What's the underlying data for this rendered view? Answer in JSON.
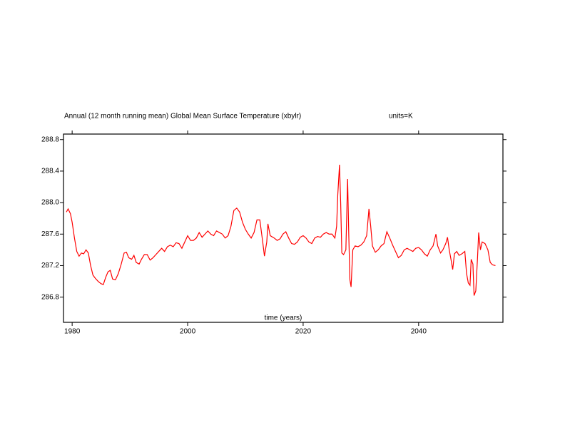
{
  "chart_data": {
    "type": "line",
    "title": "Annual (12 month running mean) Global Mean Surface Temperature (xbylr)",
    "subtitle": "units=K",
    "xlabel": "time (years)",
    "xlim": [
      1978.5,
      2054.6
    ],
    "ylim": [
      286.48,
      288.87
    ],
    "xticks": [
      1980,
      2000,
      2020,
      2040
    ],
    "yticks": [
      286.8,
      287.2,
      287.6,
      {
        "value": 288.0,
        "label": "288.0"
      },
      288.4,
      288.8
    ],
    "x": [
      1979.0,
      1979.3,
      1979.7,
      1980.0,
      1980.4,
      1980.8,
      1981.2,
      1981.6,
      1982.0,
      1982.4,
      1982.8,
      1983.2,
      1983.6,
      1984.0,
      1984.5,
      1985.0,
      1985.4,
      1985.8,
      1986.2,
      1986.6,
      1987.0,
      1987.5,
      1988.0,
      1988.5,
      1989.0,
      1989.4,
      1989.8,
      1990.3,
      1990.7,
      1991.1,
      1991.6,
      1992.0,
      1992.5,
      1993.0,
      1993.5,
      1994.0,
      1994.5,
      1995.0,
      1995.5,
      1996.0,
      1996.5,
      1997.0,
      1997.5,
      1998.0,
      1998.5,
      1999.0,
      1999.5,
      2000.0,
      2000.5,
      2001.0,
      2001.5,
      2002.0,
      2002.5,
      2003.0,
      2003.5,
      2004.0,
      2004.5,
      2005.0,
      2005.5,
      2006.0,
      2006.5,
      2007.0,
      2007.5,
      2008.0,
      2008.5,
      2009.0,
      2009.5,
      2010.0,
      2010.5,
      2011.0,
      2011.5,
      2012.0,
      2012.5,
      2013.0,
      2013.3,
      2013.7,
      2013.9,
      2014.3,
      2015.0,
      2015.5,
      2016.0,
      2016.5,
      2017.0,
      2017.5,
      2018.0,
      2018.5,
      2019.0,
      2019.5,
      2020.0,
      2020.5,
      2021.0,
      2021.5,
      2022.0,
      2022.5,
      2023.0,
      2023.5,
      2024.0,
      2024.5,
      2025.0,
      2025.5,
      2025.8,
      2026.0,
      2026.3,
      2026.5,
      2026.7,
      2027.0,
      2027.4,
      2027.7,
      2027.9,
      2028.1,
      2028.3,
      2028.6,
      2029.0,
      2029.5,
      2030.0,
      2030.5,
      2031.0,
      2031.4,
      2031.7,
      2032.0,
      2032.5,
      2033.0,
      2033.5,
      2034.0,
      2034.5,
      2035.0,
      2035.5,
      2036.0,
      2036.5,
      2037.0,
      2037.5,
      2038.0,
      2038.5,
      2039.0,
      2039.5,
      2040.0,
      2040.5,
      2041.0,
      2041.5,
      2042.0,
      2042.5,
      2043.0,
      2043.3,
      2043.8,
      2044.2,
      2044.7,
      2045.0,
      2045.3,
      2045.6,
      2045.9,
      2046.2,
      2046.6,
      2047.0,
      2047.5,
      2048.0,
      2048.3,
      2048.6,
      2048.9,
      2049.1,
      2049.4,
      2049.6,
      2049.9,
      2050.2,
      2050.4,
      2050.7,
      2051.0,
      2051.5,
      2052.0,
      2052.4,
      2052.8,
      2053.3
    ],
    "series": [
      {
        "name": "Global Mean Surface Temperature",
        "color": "#ff0000",
        "values": [
          287.88,
          287.92,
          287.86,
          287.75,
          287.55,
          287.38,
          287.32,
          287.36,
          287.35,
          287.4,
          287.36,
          287.2,
          287.08,
          287.04,
          287.0,
          286.97,
          286.96,
          287.05,
          287.12,
          287.14,
          287.03,
          287.02,
          287.1,
          287.22,
          287.36,
          287.37,
          287.3,
          287.28,
          287.33,
          287.24,
          287.22,
          287.28,
          287.34,
          287.34,
          287.27,
          287.3,
          287.34,
          287.38,
          287.42,
          287.38,
          287.44,
          287.46,
          287.44,
          287.49,
          287.48,
          287.42,
          287.5,
          287.58,
          287.52,
          287.52,
          287.55,
          287.62,
          287.56,
          287.6,
          287.64,
          287.6,
          287.58,
          287.64,
          287.62,
          287.6,
          287.55,
          287.58,
          287.7,
          287.9,
          287.93,
          287.88,
          287.75,
          287.66,
          287.6,
          287.55,
          287.62,
          287.78,
          287.78,
          287.5,
          287.32,
          287.5,
          287.73,
          287.58,
          287.55,
          287.52,
          287.54,
          287.6,
          287.63,
          287.55,
          287.48,
          287.47,
          287.5,
          287.56,
          287.58,
          287.55,
          287.5,
          287.48,
          287.55,
          287.57,
          287.56,
          287.6,
          287.62,
          287.6,
          287.6,
          287.55,
          287.7,
          288.1,
          288.48,
          288.0,
          287.36,
          287.34,
          287.4,
          288.3,
          287.6,
          287.02,
          286.93,
          287.4,
          287.45,
          287.44,
          287.46,
          287.5,
          287.58,
          287.92,
          287.7,
          287.45,
          287.37,
          287.4,
          287.45,
          287.48,
          287.63,
          287.55,
          287.46,
          287.38,
          287.3,
          287.33,
          287.4,
          287.42,
          287.4,
          287.38,
          287.42,
          287.43,
          287.4,
          287.35,
          287.32,
          287.4,
          287.45,
          287.6,
          287.45,
          287.36,
          287.4,
          287.48,
          287.56,
          287.4,
          287.28,
          287.15,
          287.35,
          287.38,
          287.33,
          287.35,
          287.38,
          287.1,
          286.98,
          286.95,
          287.28,
          287.22,
          286.82,
          286.88,
          287.3,
          287.62,
          287.4,
          287.5,
          287.48,
          287.4,
          287.24,
          287.21,
          287.2
        ]
      }
    ]
  }
}
